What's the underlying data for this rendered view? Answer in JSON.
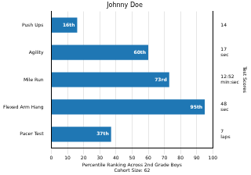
{
  "chart_data": {
    "type": "bar",
    "title": "Johnny Doe",
    "orientation": "horizontal",
    "categories": [
      "Push Ups",
      "Agility",
      "Mile Run",
      "Flexed Arm Hang",
      "Pacer Test"
    ],
    "values": [
      16,
      60,
      73,
      95,
      37
    ],
    "value_labels": [
      "16th",
      "60th",
      "73rd",
      "95th",
      "37th"
    ],
    "data_labels": true,
    "color": "#1f77b4",
    "x_label": [
      "Percentile Ranking Across 2nd Grade Boys",
      "Cohort Size: 62"
    ],
    "xlim": [
      0,
      100
    ],
    "xticks": [
      0,
      10,
      20,
      30,
      40,
      50,
      60,
      70,
      80,
      90,
      100
    ],
    "y2_label": "Test Scores",
    "y2_categories": [
      [
        "14"
      ],
      [
        "17",
        "sec"
      ],
      [
        "12:52",
        "min:sec"
      ],
      [
        "48",
        "sec"
      ],
      [
        "7",
        "laps"
      ]
    ],
    "grid": true
  }
}
